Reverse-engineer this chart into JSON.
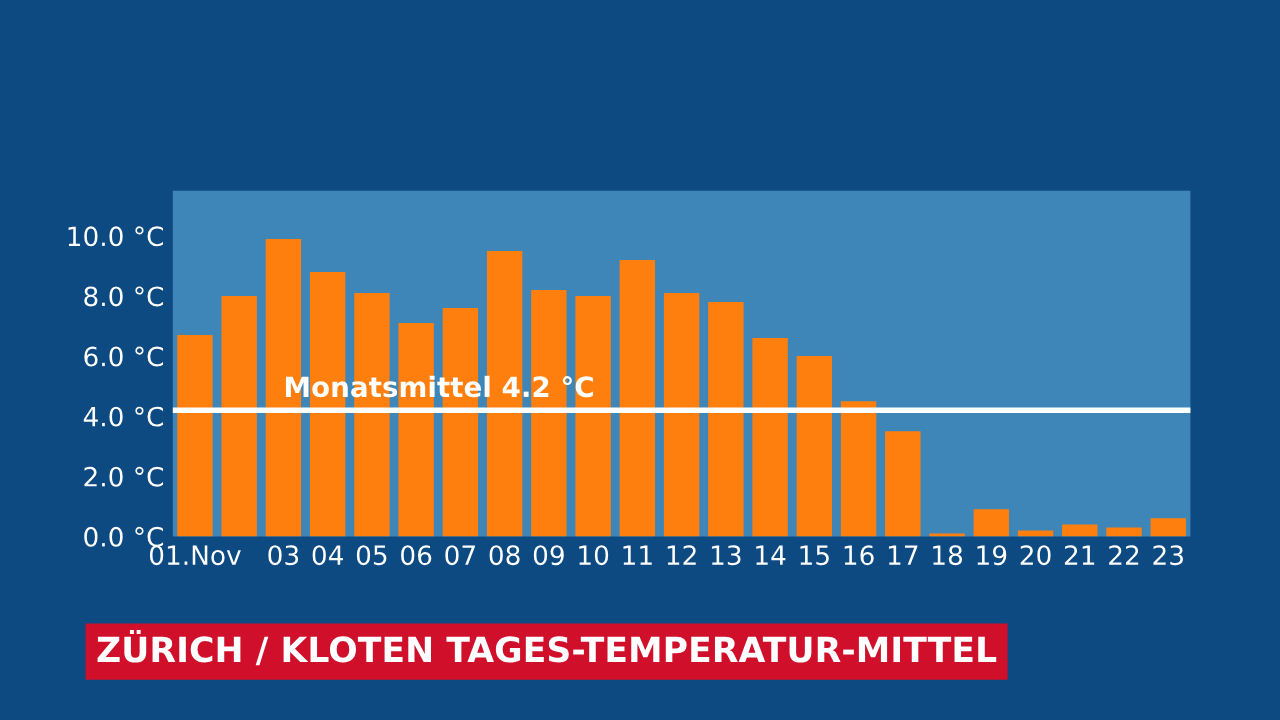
{
  "chart_data": {
    "type": "bar",
    "title": "ZÜRICH / KLOTEN TAGES-TEMPERATUR-MITTEL",
    "categories": [
      "01.Nov",
      null,
      "03",
      "04",
      "05",
      "06",
      "07",
      "08",
      "09",
      "10",
      "11",
      "12",
      "13",
      "14",
      "15",
      "16",
      "17",
      "18",
      "19",
      "20",
      "21",
      "22",
      "23"
    ],
    "values": [
      6.7,
      8.0,
      9.9,
      8.8,
      8.1,
      7.1,
      7.6,
      9.5,
      8.2,
      8.0,
      9.2,
      8.1,
      7.8,
      6.6,
      6.0,
      4.5,
      3.5,
      0.1,
      0.9,
      0.2,
      0.4,
      0.3,
      0.6
    ],
    "color": "#ff7f0e",
    "ylim": [
      0,
      11.5
    ],
    "yticks": [
      {
        "value": 0,
        "label": "0.0 °C"
      },
      {
        "value": 2,
        "label": "2.0 °C"
      },
      {
        "value": 4,
        "label": "4.0 °C"
      },
      {
        "value": 6,
        "label": "6.0 °C"
      },
      {
        "value": 8,
        "label": "8.0 °C"
      },
      {
        "value": 10,
        "label": "10.0 °C"
      }
    ],
    "ref_lines": [
      {
        "axis": "y",
        "value": 4.2,
        "label": "Monatsmittel 4.2 °C",
        "color": "#ffffff"
      }
    ],
    "grid": false,
    "legend": false
  }
}
